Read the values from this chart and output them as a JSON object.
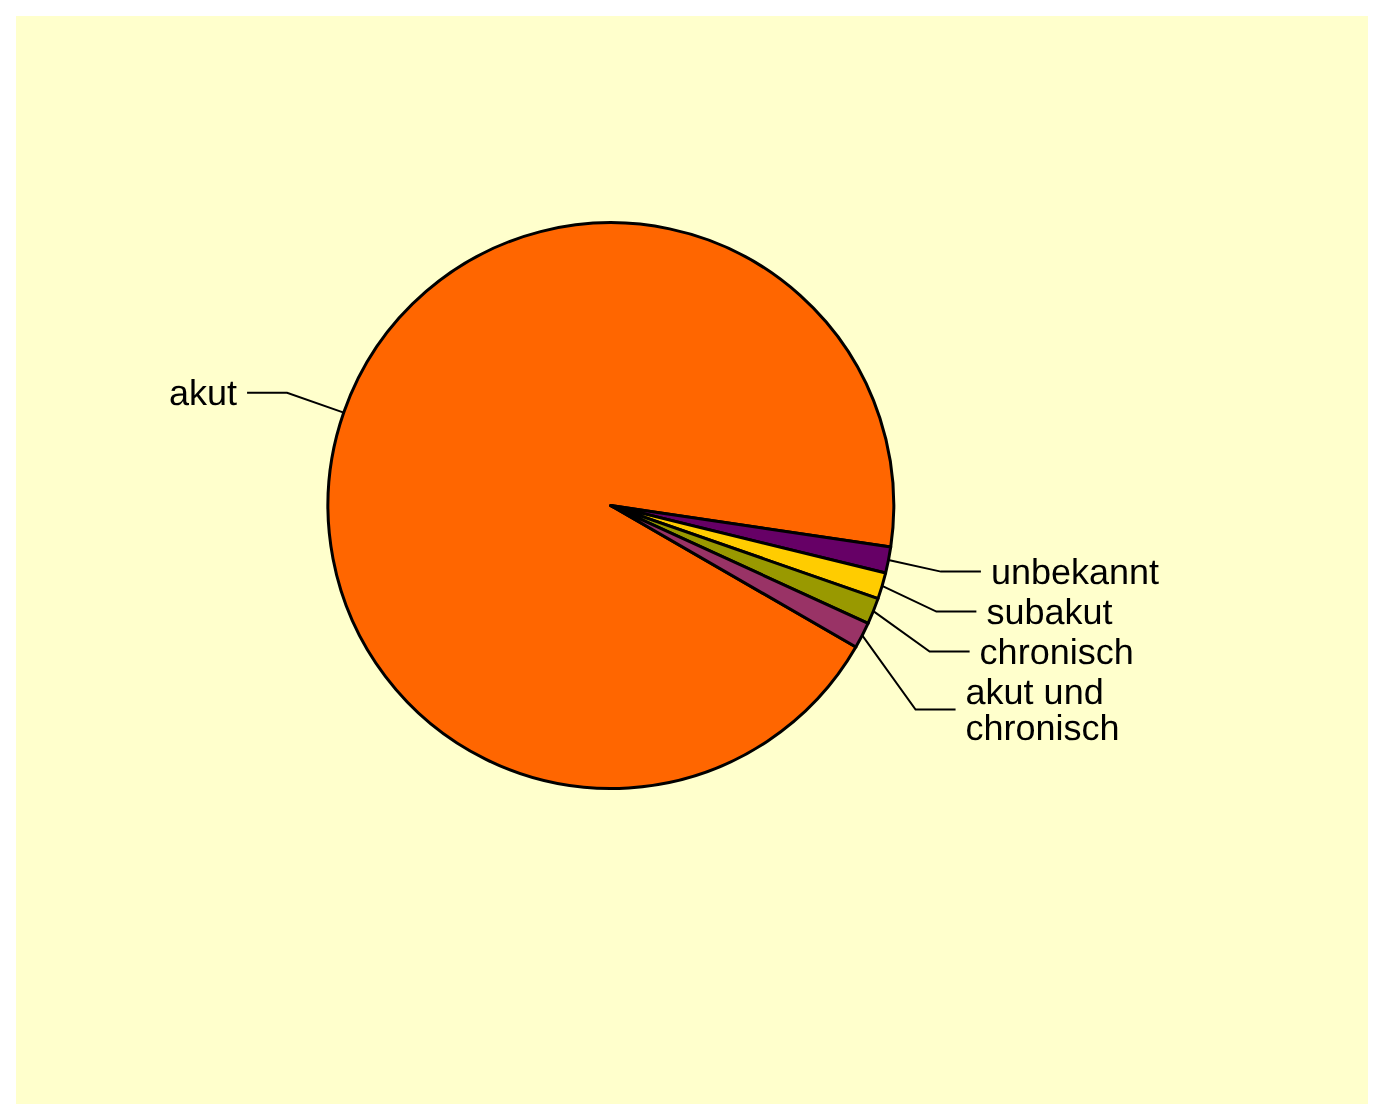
{
  "chart_data": {
    "type": "pie",
    "categories": [
      "akut",
      "unbekannt",
      "subakut",
      "chronisch",
      "akut und chronisch"
    ],
    "values": [
      94,
      1.5,
      1.5,
      1.5,
      1.5
    ],
    "colors": [
      "#ff6600",
      "#660066",
      "#ffcc00",
      "#999900",
      "#993366"
    ],
    "legend": false
  }
}
